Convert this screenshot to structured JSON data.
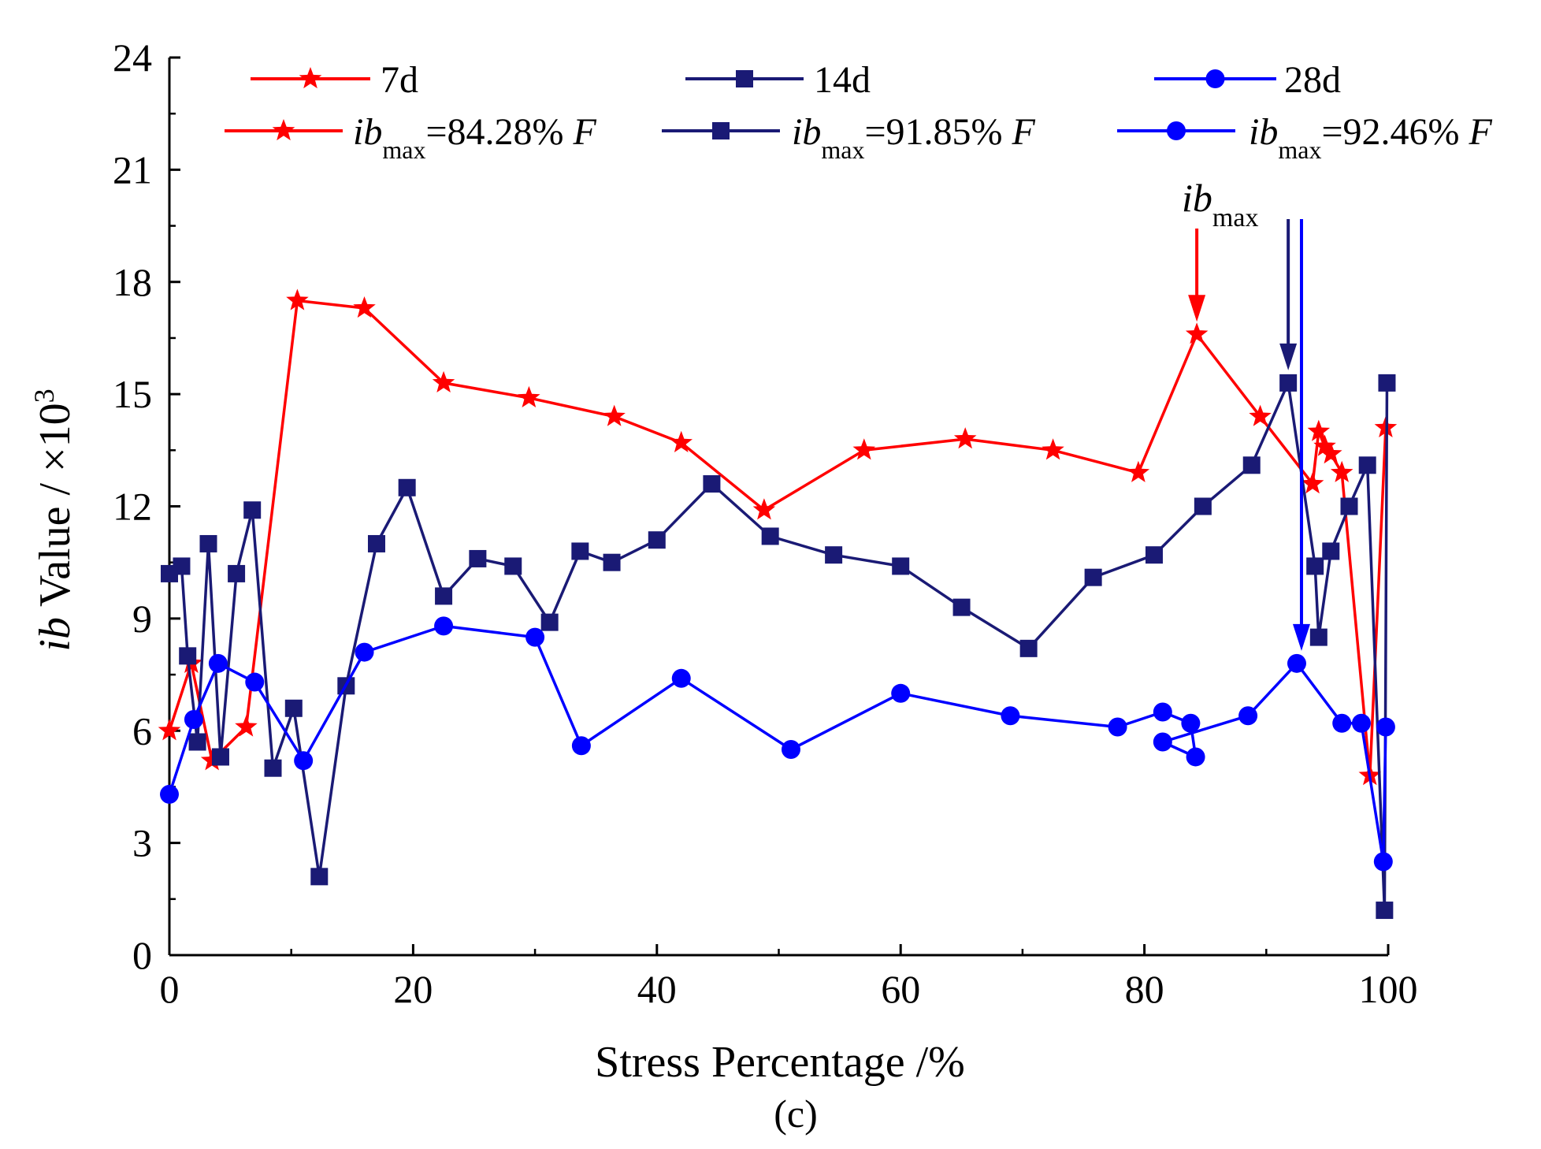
{
  "chart_data": {
    "type": "line",
    "xlabel": "Stress Percentage /%",
    "ylabel": {
      "italic": "ib",
      "text": " Value / ×10",
      "sup": "3"
    },
    "xlim": [
      0,
      100
    ],
    "ylim": [
      0,
      24
    ],
    "xticks": [
      "0",
      "20",
      "40",
      "60",
      "80",
      "100"
    ],
    "yticks": [
      "0",
      "3",
      "6",
      "9",
      "12",
      "15",
      "18",
      "21",
      "24"
    ],
    "grid": false,
    "legend_position": "top",
    "panel_label": "(c)",
    "series": [
      {
        "name": "7d",
        "color": "#ff0000",
        "marker": "star",
        "ibmax_text": "=84.28% ",
        "ibmax_sub": "max",
        "ibmax_italic": "ib",
        "ibmax_unit": "F",
        "points": [
          [
            0,
            6.0
          ],
          [
            1.8,
            7.8
          ],
          [
            3.5,
            5.2
          ],
          [
            6.3,
            6.1
          ],
          [
            10.5,
            17.5
          ],
          [
            16.0,
            17.3
          ],
          [
            22.5,
            15.3
          ],
          [
            29.5,
            14.9
          ],
          [
            36.5,
            14.4
          ],
          [
            42.0,
            13.7
          ],
          [
            48.8,
            11.9
          ],
          [
            57.0,
            13.5
          ],
          [
            65.3,
            13.8
          ],
          [
            72.5,
            13.5
          ],
          [
            79.5,
            12.9
          ],
          [
            84.3,
            16.6
          ],
          [
            89.5,
            14.4
          ],
          [
            93.8,
            12.6
          ],
          [
            94.3,
            14.0
          ],
          [
            94.8,
            13.6
          ],
          [
            95.3,
            13.4
          ],
          [
            96.2,
            12.9
          ],
          [
            98.5,
            4.8
          ],
          [
            99.8,
            14.1
          ]
        ]
      },
      {
        "name": "14d",
        "color": "#1a1a75",
        "marker": "square",
        "ibmax_text": "=91.85% ",
        "ibmax_sub": "max",
        "ibmax_italic": "ib",
        "ibmax_unit": "F",
        "points": [
          [
            0,
            10.2
          ],
          [
            1.0,
            10.4
          ],
          [
            1.5,
            8.0
          ],
          [
            2.3,
            5.7
          ],
          [
            3.2,
            11.0
          ],
          [
            4.2,
            5.3
          ],
          [
            5.5,
            10.2
          ],
          [
            6.8,
            11.9
          ],
          [
            8.5,
            5.0
          ],
          [
            10.2,
            6.6
          ],
          [
            12.3,
            2.1
          ],
          [
            14.5,
            7.2
          ],
          [
            17.0,
            11.0
          ],
          [
            19.5,
            12.5
          ],
          [
            22.5,
            9.6
          ],
          [
            25.3,
            10.6
          ],
          [
            28.2,
            10.4
          ],
          [
            31.2,
            8.9
          ],
          [
            33.7,
            10.8
          ],
          [
            36.3,
            10.5
          ],
          [
            40.0,
            11.1
          ],
          [
            44.5,
            12.6
          ],
          [
            49.3,
            11.2
          ],
          [
            54.5,
            10.7
          ],
          [
            60.0,
            10.4
          ],
          [
            65.0,
            9.3
          ],
          [
            70.5,
            8.2
          ],
          [
            75.8,
            10.1
          ],
          [
            80.8,
            10.7
          ],
          [
            84.8,
            12.0
          ],
          [
            88.8,
            13.1
          ],
          [
            91.8,
            15.3
          ],
          [
            94.0,
            10.4
          ],
          [
            94.3,
            8.5
          ],
          [
            95.3,
            10.8
          ],
          [
            96.8,
            12.0
          ],
          [
            98.3,
            13.1
          ],
          [
            99.7,
            1.2
          ],
          [
            99.9,
            15.3
          ]
        ]
      },
      {
        "name": "28d",
        "color": "#0000ff",
        "marker": "circle",
        "ibmax_text": "=92.46% ",
        "ibmax_sub": "max",
        "ibmax_italic": "ib",
        "ibmax_unit": "F",
        "points": [
          [
            0,
            4.3
          ],
          [
            2.0,
            6.3
          ],
          [
            4.0,
            7.8
          ],
          [
            7.0,
            7.3
          ],
          [
            11.0,
            5.2
          ],
          [
            16.0,
            8.1
          ],
          [
            22.5,
            8.8
          ],
          [
            30.0,
            8.5
          ],
          [
            33.8,
            5.6
          ],
          [
            42.0,
            7.4
          ],
          [
            51.0,
            5.5
          ],
          [
            60.0,
            7.0
          ],
          [
            69.0,
            6.4
          ],
          [
            77.8,
            6.1
          ],
          [
            81.5,
            6.5
          ],
          [
            83.8,
            6.2
          ],
          [
            84.2,
            5.3
          ],
          [
            81.5,
            5.7
          ],
          [
            88.5,
            6.4
          ],
          [
            92.5,
            7.8
          ],
          [
            96.2,
            6.2
          ],
          [
            97.8,
            6.2
          ],
          [
            99.6,
            2.5
          ],
          [
            99.8,
            6.1
          ]
        ]
      }
    ],
    "annotation": {
      "italic": "ib",
      "sub": "max",
      "arrows": [
        {
          "series": "7d",
          "x": 84.3,
          "y": 16.6,
          "color": "#ff0000"
        },
        {
          "series": "14d",
          "x": 91.8,
          "y": 15.3,
          "color": "#1a1a75"
        },
        {
          "series": "28d",
          "x": 92.5,
          "y": 7.8,
          "color": "#0000ff"
        }
      ]
    }
  }
}
